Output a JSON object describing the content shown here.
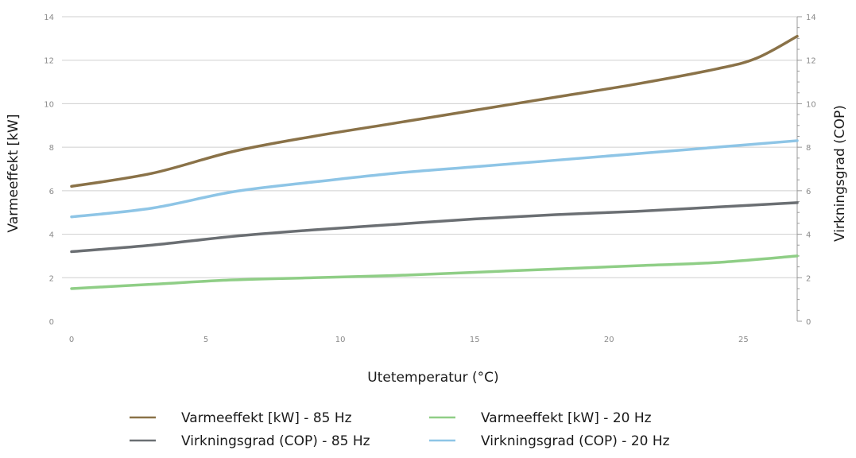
{
  "chart_data": {
    "type": "line",
    "title": "",
    "xlabel": "Utetemperatur (°C)",
    "ylabel": "Varmeeffekt [kW]",
    "ylabel_right": "Virkningsgrad (COP)",
    "xlim": [
      0,
      27
    ],
    "ylim": [
      0,
      14
    ],
    "ylim_right": [
      0,
      14
    ],
    "x_ticks": [
      "0",
      "5",
      "10",
      "15",
      "20",
      "25"
    ],
    "y_ticks": [
      "0",
      "2",
      "4",
      "6",
      "8",
      "10",
      "12",
      "14"
    ],
    "y_ticks_right": [
      "0",
      "2",
      "4",
      "6",
      "8",
      "10",
      "12",
      "14"
    ],
    "grid": true,
    "legend_position": "bottom",
    "series": [
      {
        "name": "Varmeeffekt [kW] - 85 Hz",
        "color": "#8a7248",
        "axis": "left",
        "x": [
          0,
          3,
          6,
          9,
          12,
          15,
          18,
          21,
          24,
          25.5,
          27
        ],
        "y": [
          6.2,
          6.8,
          7.8,
          8.5,
          9.1,
          9.7,
          10.3,
          10.9,
          11.6,
          12.1,
          13.1
        ]
      },
      {
        "name": "Varmeeffekt [kW] - 20 Hz",
        "color": "#8fce86",
        "axis": "left",
        "x": [
          0,
          3,
          6,
          9,
          12,
          15,
          18,
          21,
          24,
          27
        ],
        "y": [
          1.5,
          1.7,
          1.9,
          2.0,
          2.1,
          2.25,
          2.4,
          2.55,
          2.7,
          3.0
        ]
      },
      {
        "name": "Virkningsgrad (COP) - 85 Hz",
        "color": "#6b6f73",
        "axis": "right",
        "x": [
          0,
          3,
          6,
          9,
          12,
          15,
          18,
          21,
          24,
          27
        ],
        "y": [
          3.2,
          3.5,
          3.9,
          4.2,
          4.45,
          4.7,
          4.9,
          5.05,
          5.25,
          5.45
        ]
      },
      {
        "name": "Virkningsgrad (COP) - 20 Hz",
        "color": "#8ec5e6",
        "axis": "right",
        "x": [
          0,
          3,
          6,
          9,
          12,
          15,
          18,
          21,
          24,
          27
        ],
        "y": [
          4.8,
          5.2,
          5.95,
          6.4,
          6.8,
          7.1,
          7.4,
          7.7,
          8.0,
          8.3
        ]
      }
    ]
  }
}
